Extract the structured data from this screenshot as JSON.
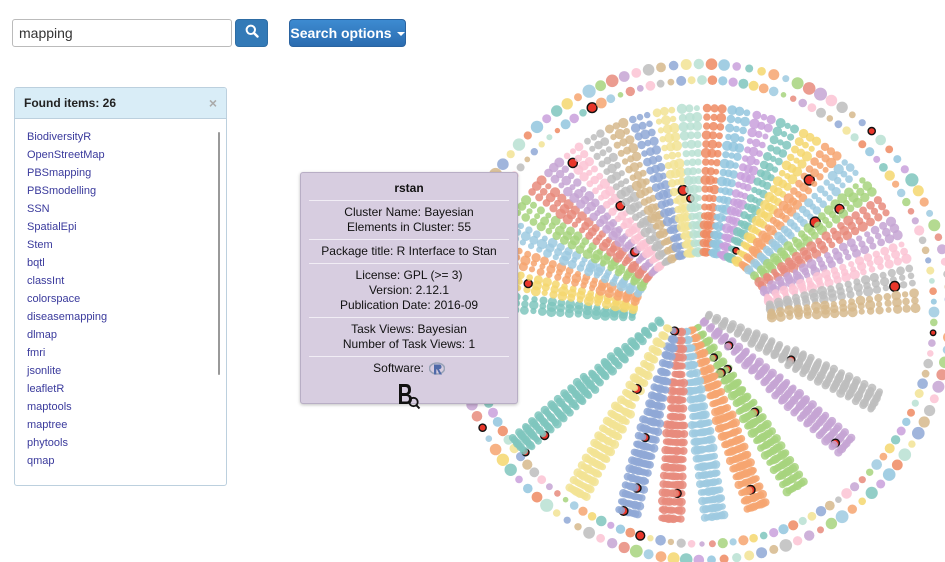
{
  "search": {
    "value": "mapping",
    "placeholder": ""
  },
  "search_options": {
    "label": "Search options"
  },
  "found": {
    "header": "Found items: 26",
    "close": "×",
    "items": [
      "BiodiversityR",
      "OpenStreetMap",
      "PBSmapping",
      "PBSmodelling",
      "SSN",
      "SpatialEpi",
      "Stem",
      "bqtl",
      "classInt",
      "colorspace",
      "diseasemapping",
      "dlmap",
      "fmri",
      "jsonlite",
      "leafletR",
      "maptools",
      "maptree",
      "phytools",
      "qmap"
    ]
  },
  "tooltip": {
    "title": "rstan",
    "cluster_name": "Cluster Name: Bayesian",
    "elements": "Elements in Cluster: 55",
    "package_title": "Package title: R Interface to Stan",
    "license": "License: GPL (>= 3)",
    "version": "Version: 2.12.1",
    "pub_date": "Publication Date: 2016-09",
    "task_views": "Task Views: Bayesian",
    "num_task_views": "Number of Task Views: 1",
    "software": "Software:"
  },
  "colors": {
    "accent": "#337ab7",
    "tooltip_bg": "#d7cde0",
    "panel_header": "#d9edf7",
    "link": "#3a3a9c",
    "highlight": "#e8362a"
  },
  "icons": {
    "search_button": "search-icon",
    "software": "r-logo-icon",
    "brand": "bq-logo-icon",
    "options_caret": "caret-down-icon"
  }
}
